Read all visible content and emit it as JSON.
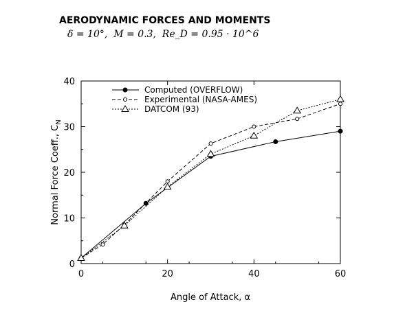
{
  "chart_data": {
    "type": "line",
    "title": "AERODYNAMIC FORCES AND MOMENTS",
    "subtitle": "δ = 10°,  M = 0.3,  Re_D = 0.95 · 10^6",
    "xlabel": "Angle of Attack, α",
    "ylabel": "Normal Force Coeff., C",
    "ylabel_subscript": "N",
    "xlim": [
      0,
      60
    ],
    "ylim": [
      0,
      40
    ],
    "xticks": [
      0,
      20,
      40,
      60
    ],
    "yticks": [
      0,
      10,
      20,
      30,
      40
    ],
    "legend_position": "top-left",
    "grid": false,
    "series": [
      {
        "name": "Computed (OVERFLOW)",
        "line": "solid",
        "marker": "filled-circle",
        "x": [
          0,
          15,
          30,
          45,
          60
        ],
        "y": [
          1.2,
          13.2,
          23.5,
          26.7,
          29.0
        ]
      },
      {
        "name": "Experimental (NASA-AMES)",
        "line": "dashed",
        "marker": "open-circle",
        "x": [
          0,
          5,
          10,
          20,
          30,
          40,
          50,
          60
        ],
        "y": [
          1.2,
          4.2,
          8.5,
          18.0,
          26.3,
          30.0,
          31.7,
          35.0
        ]
      },
      {
        "name": "DATCOM (93)",
        "line": "dotted",
        "marker": "open-triangle",
        "x": [
          0,
          10,
          20,
          30,
          40,
          50,
          60
        ],
        "y": [
          1.2,
          8.3,
          16.8,
          24.0,
          28.0,
          33.5,
          36.0
        ]
      }
    ]
  }
}
